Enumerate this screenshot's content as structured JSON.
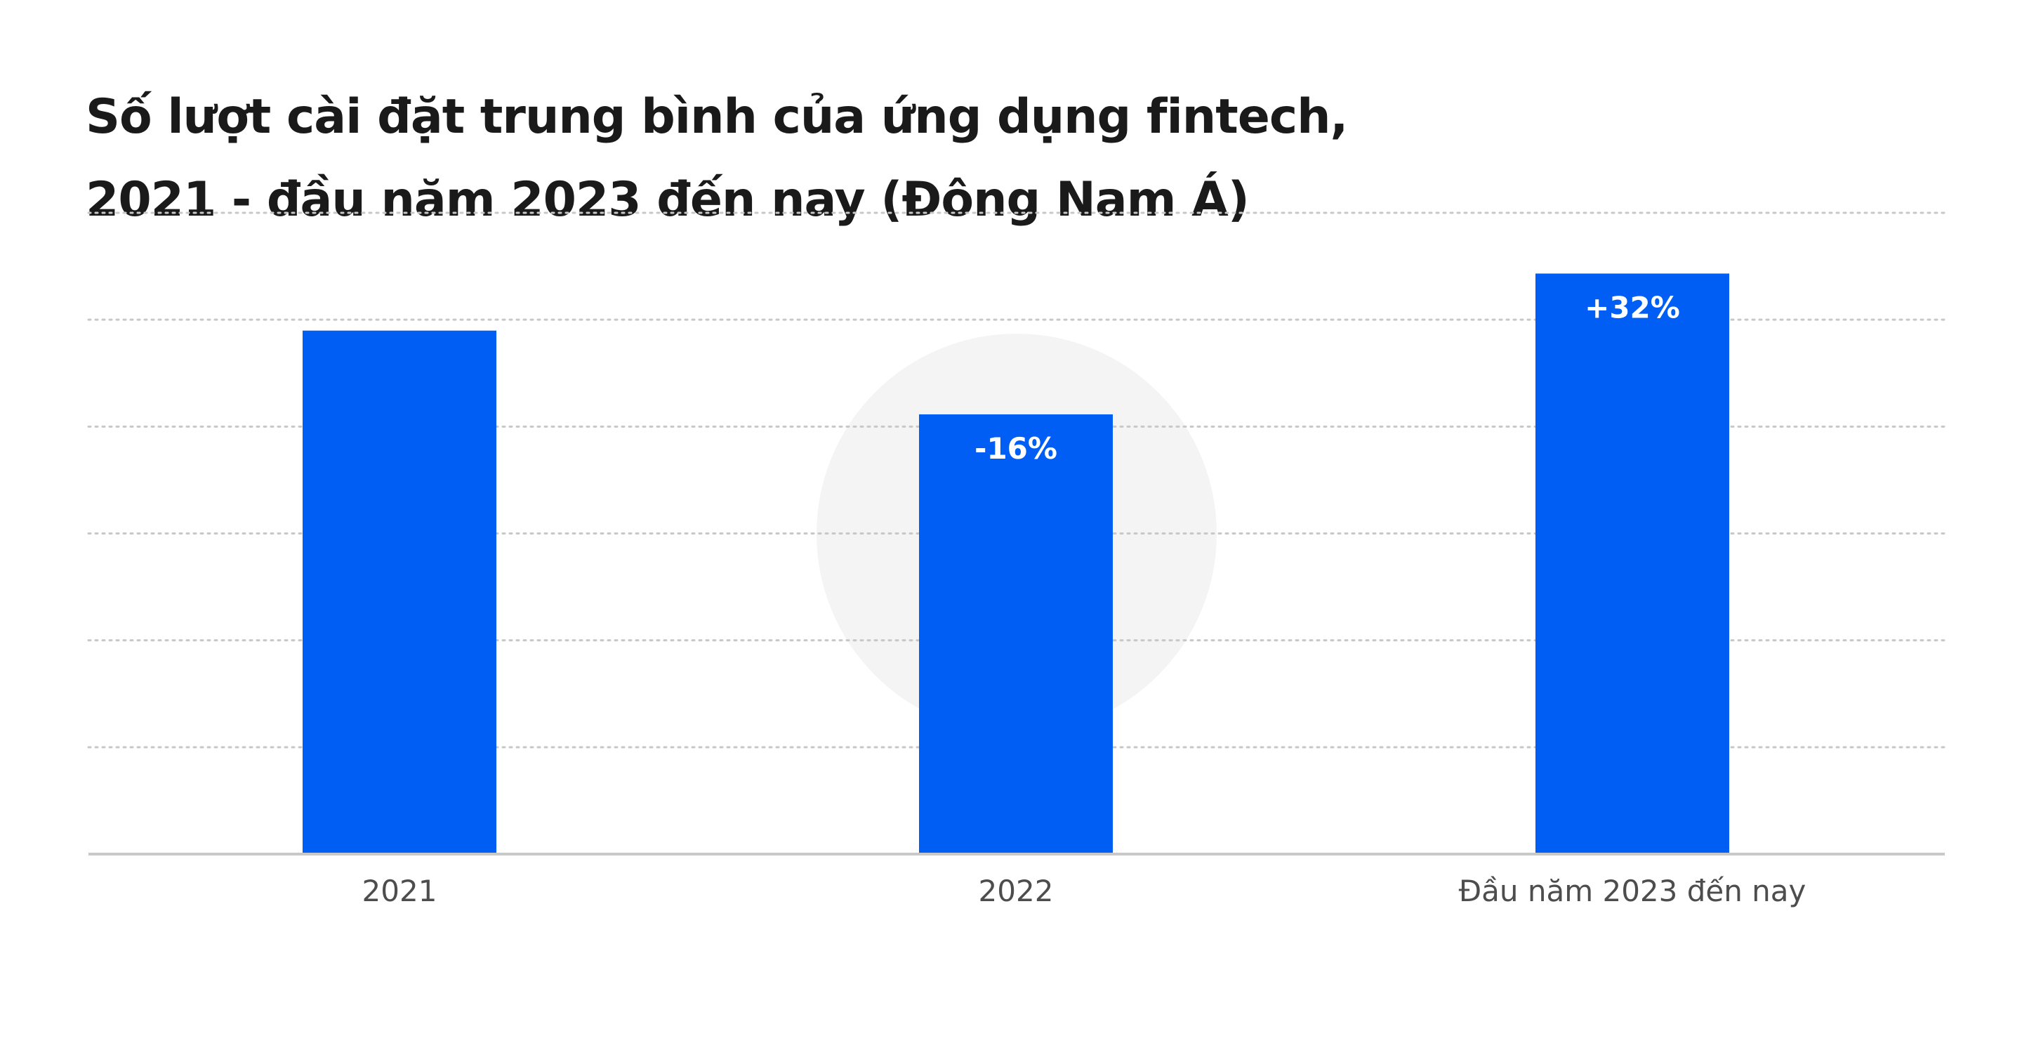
{
  "chart_data": {
    "type": "bar",
    "title_lines": [
      "Số lượt cài đặt trung bình của ứng dụng fintech,",
      "2021 - đầu năm 2023 đến nay (Đông Nam Á)"
    ],
    "categories": [
      "2021",
      "2022",
      "Đầu năm 2023 đến nay"
    ],
    "values": [
      100,
      84,
      110.9
    ],
    "data_labels": [
      "",
      "-16%",
      "+32%"
    ],
    "xlabel": "",
    "ylabel": "",
    "ylim": [
      0,
      122.5
    ],
    "grid": true,
    "legend": "none",
    "bar_color": "#005EF5",
    "grid_color": "#C8C8C8",
    "axis_color": "#C8C8C8",
    "watermark_color": "#F4F4F4"
  }
}
